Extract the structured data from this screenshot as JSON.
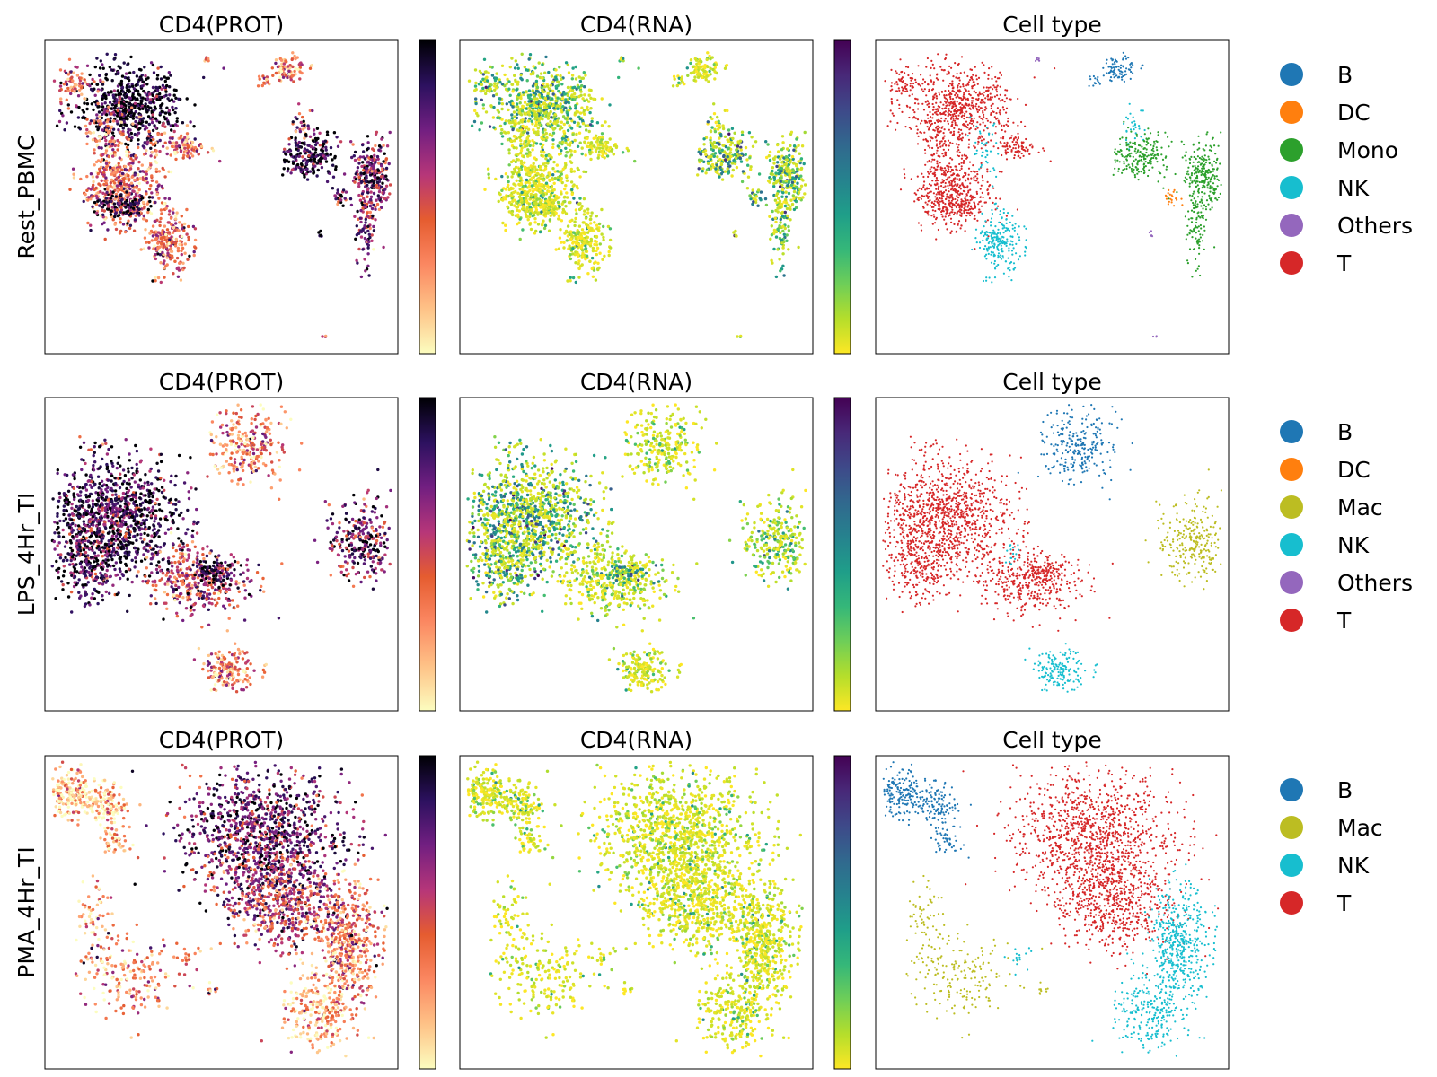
{
  "chart_data": {
    "type": "scatter",
    "description_kind": "UMAP embedding grid (3 conditions x 3 panels)",
    "axes_ticks_shown": false,
    "grid": false,
    "colormaps": {
      "prot": [
        "#fcfdbf",
        "#fec287",
        "#fb8761",
        "#e55c30",
        "#b63679",
        "#721f81",
        "#2c115f",
        "#000004"
      ],
      "rna": [
        "#fde725",
        "#b5de2b",
        "#6ece58",
        "#35b779",
        "#1f9e89",
        "#26828e",
        "#31688e",
        "#3e4989",
        "#482878",
        "#440154"
      ]
    },
    "celltype_colors": {
      "B": "#1f77b4",
      "DC": "#ff7f0e",
      "Mono": "#2ca02c",
      "Mac": "#bcbd22",
      "NK": "#17becf",
      "Others": "#9467bd",
      "T": "#d62728"
    },
    "panel_titles": [
      "CD4(PROT)",
      "CD4(RNA)",
      "Cell type"
    ],
    "rows": [
      {
        "label": "Rest_PBMC",
        "legend": [
          "B",
          "DC",
          "Mono",
          "NK",
          "Others",
          "T"
        ],
        "clusters": [
          {
            "type": "T",
            "cx": 0.24,
            "cy": 0.79,
            "sx": 0.07,
            "sy": 0.06,
            "n": 600,
            "prot": 0.93,
            "rna": 0.38
          },
          {
            "type": "T",
            "cx": 0.08,
            "cy": 0.85,
            "sx": 0.025,
            "sy": 0.03,
            "n": 70,
            "prot": 0.4,
            "rna": 0.4
          },
          {
            "type": "T",
            "cx": 0.18,
            "cy": 0.68,
            "sx": 0.03,
            "sy": 0.06,
            "n": 120,
            "prot": 0.35,
            "rna": 0.1
          },
          {
            "type": "T",
            "cx": 0.22,
            "cy": 0.52,
            "sx": 0.055,
            "sy": 0.06,
            "n": 400,
            "prot": 0.42,
            "rna": 0.05
          },
          {
            "type": "T",
            "cx": 0.4,
            "cy": 0.66,
            "sx": 0.03,
            "sy": 0.02,
            "n": 90,
            "prot": 0.35,
            "rna": 0.06
          },
          {
            "type": "T",
            "cx": 0.22,
            "cy": 0.47,
            "sx": 0.04,
            "sy": 0.02,
            "n": 120,
            "prot": 0.9,
            "rna": 0.1
          },
          {
            "type": "NK",
            "cx": 0.35,
            "cy": 0.35,
            "sx": 0.03,
            "sy": 0.05,
            "n": 220,
            "prot": 0.4,
            "rna": 0.04
          },
          {
            "type": "NK",
            "cx": 0.31,
            "cy": 0.64,
            "sx": 0.02,
            "sy": 0.05,
            "n": 40,
            "prot": 0.4,
            "rna": 0.05
          },
          {
            "type": "B",
            "cx": 0.69,
            "cy": 0.91,
            "sx": 0.025,
            "sy": 0.018,
            "n": 80,
            "prot": 0.35,
            "rna": 0.04
          },
          {
            "type": "B",
            "cx": 0.63,
            "cy": 0.87,
            "sx": 0.012,
            "sy": 0.012,
            "n": 15,
            "prot": 0.35,
            "rna": 0.05
          },
          {
            "type": "NK",
            "cx": 0.73,
            "cy": 0.73,
            "sx": 0.015,
            "sy": 0.04,
            "n": 30,
            "prot": 0.5,
            "rna": 0.05
          },
          {
            "type": "Mono",
            "cx": 0.75,
            "cy": 0.63,
            "sx": 0.035,
            "sy": 0.035,
            "n": 200,
            "prot": 0.92,
            "rna": 0.45
          },
          {
            "type": "Mono",
            "cx": 0.93,
            "cy": 0.57,
            "sx": 0.03,
            "sy": 0.05,
            "n": 250,
            "prot": 0.7,
            "rna": 0.4
          },
          {
            "type": "Mono",
            "cx": 0.91,
            "cy": 0.4,
            "sx": 0.015,
            "sy": 0.06,
            "n": 90,
            "prot": 0.68,
            "rna": 0.35
          },
          {
            "type": "DC",
            "cx": 0.84,
            "cy": 0.5,
            "sx": 0.012,
            "sy": 0.015,
            "n": 20,
            "prot": 0.6,
            "rna": 0.3
          },
          {
            "type": "Others",
            "cx": 0.46,
            "cy": 0.94,
            "sx": 0.005,
            "sy": 0.005,
            "n": 6,
            "prot": 0.45,
            "rna": 0.2
          },
          {
            "type": "Others",
            "cx": 0.78,
            "cy": 0.38,
            "sx": 0.005,
            "sy": 0.01,
            "n": 6,
            "prot": 0.95,
            "rna": 0.6
          },
          {
            "type": "Others",
            "cx": 0.79,
            "cy": 0.05,
            "sx": 0.004,
            "sy": 0.004,
            "n": 3,
            "prot": 0.4,
            "rna": 0.05
          }
        ]
      },
      {
        "label": "LPS_4Hr_TI",
        "legend": [
          "B",
          "DC",
          "Mac",
          "NK",
          "Others",
          "T"
        ],
        "clusters": [
          {
            "type": "T",
            "cx": 0.2,
            "cy": 0.62,
            "sx": 0.09,
            "sy": 0.09,
            "n": 1000,
            "prot": 0.85,
            "rna": 0.45
          },
          {
            "type": "T",
            "cx": 0.12,
            "cy": 0.47,
            "sx": 0.05,
            "sy": 0.06,
            "n": 250,
            "prot": 0.82,
            "rna": 0.4
          },
          {
            "type": "T",
            "cx": 0.44,
            "cy": 0.41,
            "sx": 0.07,
            "sy": 0.05,
            "n": 350,
            "prot": 0.55,
            "rna": 0.15
          },
          {
            "type": "T",
            "cx": 0.48,
            "cy": 0.44,
            "sx": 0.03,
            "sy": 0.025,
            "n": 90,
            "prot": 0.9,
            "rna": 0.45
          },
          {
            "type": "NK",
            "cx": 0.52,
            "cy": 0.13,
            "sx": 0.04,
            "sy": 0.03,
            "n": 160,
            "prot": 0.35,
            "rna": 0.05
          },
          {
            "type": "NK",
            "cx": 0.39,
            "cy": 0.5,
            "sx": 0.01,
            "sy": 0.02,
            "n": 15,
            "prot": 0.4,
            "rna": 0.05
          },
          {
            "type": "B",
            "cx": 0.57,
            "cy": 0.85,
            "sx": 0.05,
            "sy": 0.06,
            "n": 250,
            "prot": 0.35,
            "rna": 0.05
          },
          {
            "type": "Mac",
            "cx": 0.9,
            "cy": 0.54,
            "sx": 0.05,
            "sy": 0.06,
            "n": 270,
            "prot": 0.72,
            "rna": 0.25
          }
        ]
      },
      {
        "label": "PMA_4Hr_TI",
        "legend": [
          "B",
          "Mac",
          "NK",
          "T"
        ],
        "clusters": [
          {
            "type": "T",
            "cx": 0.62,
            "cy": 0.74,
            "sx": 0.11,
            "sy": 0.1,
            "n": 1100,
            "prot": 0.75,
            "rna": 0.05
          },
          {
            "type": "T",
            "cx": 0.68,
            "cy": 0.52,
            "sx": 0.08,
            "sy": 0.07,
            "n": 500,
            "prot": 0.55,
            "rna": 0.03
          },
          {
            "type": "NK",
            "cx": 0.86,
            "cy": 0.4,
            "sx": 0.04,
            "sy": 0.09,
            "n": 450,
            "prot": 0.35,
            "rna": 0.03
          },
          {
            "type": "NK",
            "cx": 0.78,
            "cy": 0.18,
            "sx": 0.05,
            "sy": 0.06,
            "n": 250,
            "prot": 0.2,
            "rna": 0.02
          },
          {
            "type": "B",
            "cx": 0.07,
            "cy": 0.88,
            "sx": 0.04,
            "sy": 0.04,
            "n": 200,
            "prot": 0.1,
            "rna": 0.02
          },
          {
            "type": "B",
            "cx": 0.18,
            "cy": 0.84,
            "sx": 0.025,
            "sy": 0.04,
            "n": 120,
            "prot": 0.12,
            "rna": 0.02
          },
          {
            "type": "B",
            "cx": 0.2,
            "cy": 0.72,
            "sx": 0.02,
            "sy": 0.02,
            "n": 40,
            "prot": 0.2,
            "rna": 0.02
          },
          {
            "type": "Mac",
            "cx": 0.24,
            "cy": 0.3,
            "sx": 0.07,
            "sy": 0.07,
            "n": 180,
            "prot": 0.3,
            "rna": 0.03
          },
          {
            "type": "Mac",
            "cx": 0.14,
            "cy": 0.48,
            "sx": 0.02,
            "sy": 0.06,
            "n": 60,
            "prot": 0.25,
            "rna": 0.02
          },
          {
            "type": "NK",
            "cx": 0.41,
            "cy": 0.35,
            "sx": 0.02,
            "sy": 0.02,
            "n": 15,
            "prot": 0.35,
            "rna": 0.02
          },
          {
            "type": "Mac",
            "cx": 0.47,
            "cy": 0.25,
            "sx": 0.01,
            "sy": 0.01,
            "n": 10,
            "prot": 0.3,
            "rna": 0.02
          }
        ]
      }
    ]
  }
}
